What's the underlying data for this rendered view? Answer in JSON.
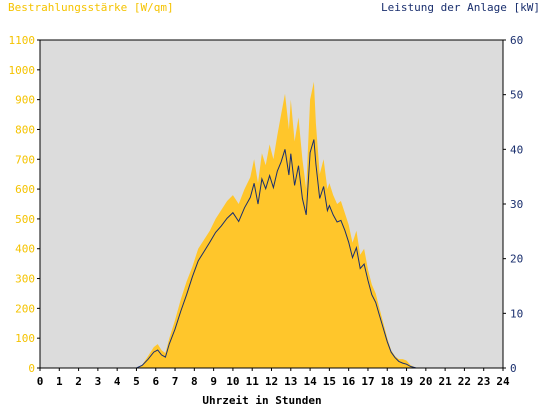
{
  "chart_data": {
    "type": "area",
    "ylabel_left": "Bestrahlungsstärke [W/qm]",
    "ylabel_right": "Leistung der Anlage [kW]",
    "xlabel": "Uhrzeit in Stunden",
    "xlim": [
      0,
      24
    ],
    "ylim_left": [
      0,
      1100
    ],
    "ylim_right": [
      0,
      60
    ],
    "x_ticks": [
      "0",
      "1",
      "2",
      "3",
      "4",
      "5",
      "6",
      "7",
      "8",
      "9",
      "10",
      "11",
      "12",
      "13",
      "14",
      "15",
      "16",
      "17",
      "18",
      "19",
      "20",
      "21",
      "22",
      "23",
      "24"
    ],
    "y_left_ticks": [
      "0",
      "100",
      "200",
      "300",
      "400",
      "500",
      "600",
      "700",
      "800",
      "900",
      "1000",
      "1100"
    ],
    "y_right_ticks": [
      "0",
      "10",
      "20",
      "30",
      "40",
      "50",
      "60"
    ],
    "grid": false,
    "colors": {
      "plot_background": "#dcdcdc",
      "irradiance_fill": "#ffc62b",
      "power_line": "#1a2f6e",
      "left_axis_text": "#f5c300",
      "right_axis_text": "#1a2f6e"
    },
    "series": [
      {
        "axis": "left",
        "style": "area",
        "x": [
          0,
          5,
          5.3,
          5.6,
          5.9,
          6.1,
          6.3,
          6.5,
          6.7,
          7.0,
          7.3,
          7.6,
          7.9,
          8.2,
          8.5,
          8.8,
          9.1,
          9.4,
          9.7,
          10.0,
          10.3,
          10.6,
          10.9,
          11.1,
          11.3,
          11.5,
          11.7,
          11.9,
          12.1,
          12.3,
          12.5,
          12.7,
          12.9,
          13.0,
          13.2,
          13.4,
          13.6,
          13.8,
          14.0,
          14.2,
          14.3,
          14.5,
          14.7,
          14.9,
          15.0,
          15.2,
          15.4,
          15.6,
          15.8,
          16.0,
          16.2,
          16.4,
          16.6,
          16.8,
          17.0,
          17.2,
          17.4,
          17.6,
          17.8,
          18.0,
          18.2,
          18.4,
          18.6,
          18.8,
          19.0,
          19.2,
          19.5,
          19.8,
          20,
          24
        ],
        "values": [
          0,
          0,
          10,
          40,
          70,
          80,
          60,
          50,
          100,
          160,
          230,
          290,
          340,
          400,
          430,
          460,
          500,
          530,
          560,
          580,
          550,
          600,
          640,
          700,
          620,
          720,
          680,
          750,
          700,
          780,
          850,
          920,
          800,
          900,
          760,
          840,
          700,
          600,
          900,
          960,
          820,
          650,
          700,
          600,
          620,
          580,
          550,
          560,
          520,
          480,
          420,
          460,
          380,
          400,
          330,
          280,
          250,
          200,
          150,
          100,
          60,
          40,
          30,
          30,
          25,
          10,
          0,
          0,
          0,
          0
        ]
      },
      {
        "axis": "right",
        "style": "line",
        "x": [
          0,
          5,
          5.3,
          5.6,
          5.9,
          6.1,
          6.3,
          6.5,
          6.7,
          7.0,
          7.3,
          7.6,
          7.9,
          8.2,
          8.5,
          8.8,
          9.1,
          9.4,
          9.7,
          10.0,
          10.3,
          10.6,
          10.9,
          11.1,
          11.3,
          11.5,
          11.7,
          11.9,
          12.1,
          12.3,
          12.5,
          12.7,
          12.9,
          13.0,
          13.2,
          13.4,
          13.6,
          13.8,
          14.0,
          14.2,
          14.3,
          14.5,
          14.7,
          14.9,
          15.0,
          15.2,
          15.4,
          15.6,
          15.8,
          16.0,
          16.2,
          16.4,
          16.6,
          16.8,
          17.0,
          17.2,
          17.4,
          17.6,
          17.8,
          18.0,
          18.2,
          18.4,
          18.6,
          18.8,
          19.0,
          19.2,
          19.5,
          19.8,
          20,
          24
        ],
        "values": [
          0,
          0,
          0.5,
          1.6,
          2.9,
          3.3,
          2.4,
          2.0,
          4.4,
          7.1,
          10.4,
          13.4,
          16.7,
          19.6,
          21.3,
          23.0,
          24.8,
          26.0,
          27.4,
          28.4,
          26.8,
          29.3,
          31.2,
          33.8,
          30.0,
          34.6,
          32.8,
          35.2,
          33.0,
          36.0,
          37.7,
          40.0,
          35.3,
          39.2,
          33.4,
          37.0,
          31.0,
          28.0,
          39.4,
          41.8,
          37.3,
          31.0,
          33.2,
          28.8,
          29.7,
          28.0,
          26.7,
          27.0,
          25.2,
          23.0,
          20.2,
          22.0,
          18.2,
          19.0,
          16.0,
          13.4,
          12.0,
          9.6,
          7.2,
          4.8,
          2.9,
          1.9,
          1.2,
          0.9,
          0.7,
          0.3,
          0,
          0,
          0,
          0
        ]
      }
    ]
  }
}
